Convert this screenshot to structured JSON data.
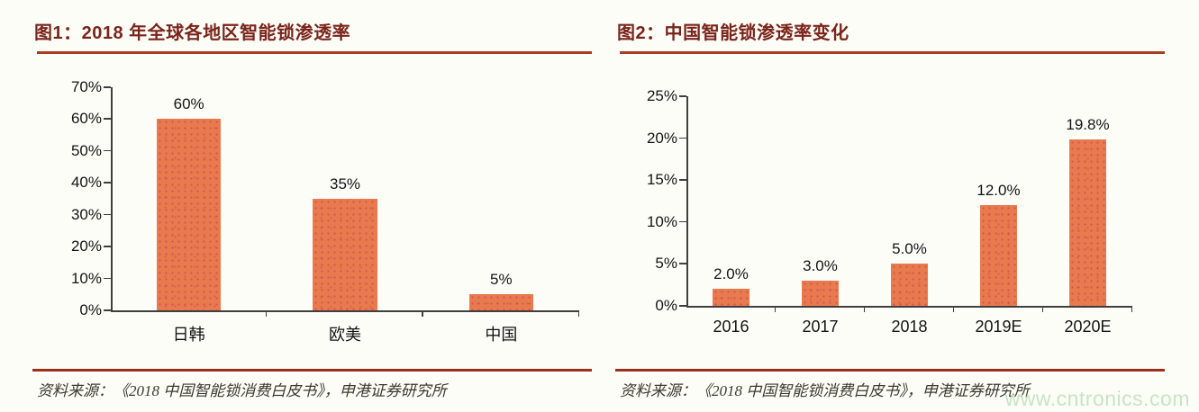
{
  "page": {
    "background": "#fdfdf8",
    "title_color": "#7a241a",
    "rule_color": "#a83c21",
    "watermark": "www.cntronics.com",
    "watermark_color": "#c7e4c3"
  },
  "chart_data": [
    {
      "type": "bar",
      "title": "图1：2018 年全球各地区智能锁渗透率",
      "categories": [
        "日韩",
        "欧美",
        "中国"
      ],
      "values": [
        60,
        35,
        5
      ],
      "data_labels": [
        "60%",
        "35%",
        "5%"
      ],
      "xlabel": "",
      "ylabel": "",
      "ylim": [
        0,
        70
      ],
      "ytick_labels": [
        "0%",
        "10%",
        "20%",
        "30%",
        "40%",
        "50%",
        "60%",
        "70%"
      ],
      "grid": false,
      "bar_color": "#e97a4d",
      "source": "资料来源：《2018 中国智能锁消费白皮书》，申港证券研究所"
    },
    {
      "type": "bar",
      "title": "图2：中国智能锁渗透率变化",
      "categories": [
        "2016",
        "2017",
        "2018",
        "2019E",
        "2020E"
      ],
      "values": [
        2.0,
        3.0,
        5.0,
        12.0,
        19.8
      ],
      "data_labels": [
        "2.0%",
        "3.0%",
        "5.0%",
        "12.0%",
        "19.8%"
      ],
      "xlabel": "",
      "ylabel": "",
      "ylim": [
        0,
        25
      ],
      "ytick_labels": [
        "0%",
        "5%",
        "10%",
        "15%",
        "20%",
        "25%"
      ],
      "grid": false,
      "bar_color": "#e97a4d",
      "source": "资料来源：《2018 中国智能锁消费白皮书》，申港证券研究所"
    }
  ]
}
